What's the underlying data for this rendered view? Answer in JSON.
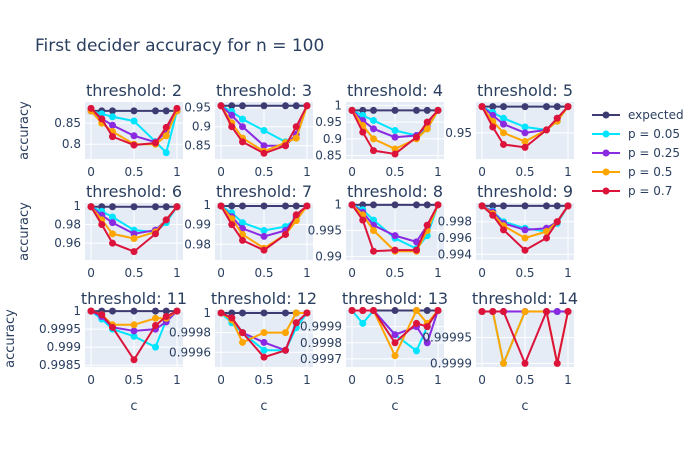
{
  "chart_data": {
    "type": "line",
    "title": "First decider accuracy for n = 100",
    "xlabel": "c",
    "ylabel": "accuracy",
    "x": [
      0,
      0.125,
      0.25,
      0.5,
      0.75,
      0.875,
      1
    ],
    "legend": {
      "placement": "right",
      "entries": [
        {
          "name": "expected",
          "color": "#3d3b72"
        },
        {
          "name": "p = 0.05",
          "color": "#00e5ff"
        },
        {
          "name": "p = 0.25",
          "color": "#8a2be2"
        },
        {
          "name": "p = 0.5",
          "color": "#ffa500"
        },
        {
          "name": "p = 0.7",
          "color": "#dc143c"
        }
      ]
    },
    "panels": [
      {
        "title": "threshold: 2",
        "ylim": [
          0.765,
          0.9
        ],
        "yticks": [
          0.8,
          0.85
        ],
        "ytick_labels": [
          "0.8",
          "0.85"
        ],
        "xticks": [
          0,
          0.5,
          1
        ],
        "xtick_labels": [
          "0",
          "0.5",
          "1"
        ],
        "series": [
          [
            0.879,
            0.879,
            0.879,
            0.879,
            0.879,
            0.879,
            0.879
          ],
          [
            0.879,
            0.872,
            0.865,
            0.855,
            0.806,
            0.78,
            0.879
          ],
          [
            0.879,
            0.86,
            0.845,
            0.82,
            0.805,
            0.83,
            0.879
          ],
          [
            0.879,
            0.85,
            0.83,
            0.8,
            0.8,
            0.82,
            0.879
          ],
          [
            0.885,
            0.86,
            0.818,
            0.798,
            0.803,
            0.84,
            0.885
          ]
        ]
      },
      {
        "title": "threshold: 3",
        "ylim": [
          0.815,
          0.965
        ],
        "yticks": [
          0.85,
          0.9,
          0.95
        ],
        "ytick_labels": [
          "0.85",
          "0.9",
          "0.95"
        ],
        "xticks": [
          0,
          0.5,
          1
        ],
        "xtick_labels": [
          "0",
          "0.5",
          "1"
        ],
        "series": [
          [
            0.955,
            0.955,
            0.955,
            0.955,
            0.955,
            0.955,
            0.955
          ],
          [
            0.955,
            0.94,
            0.92,
            0.89,
            0.86,
            0.87,
            0.955
          ],
          [
            0.955,
            0.93,
            0.9,
            0.85,
            0.85,
            0.88,
            0.955
          ],
          [
            0.955,
            0.91,
            0.87,
            0.835,
            0.858,
            0.87,
            0.955
          ],
          [
            0.955,
            0.9,
            0.86,
            0.83,
            0.85,
            0.9,
            0.955
          ]
        ]
      },
      {
        "title": "threshold: 4",
        "ylim": [
          0.84,
          1.01
        ],
        "yticks": [
          0.85,
          0.9,
          0.95,
          1
        ],
        "ytick_labels": [
          "0.85",
          "0.9",
          "0.95",
          "1"
        ],
        "xticks": [
          0,
          0.5,
          1
        ],
        "xtick_labels": [
          "0",
          "0.5",
          "1"
        ],
        "series": [
          [
            0.985,
            0.985,
            0.985,
            0.985,
            0.985,
            0.985,
            0.985
          ],
          [
            0.985,
            0.97,
            0.955,
            0.925,
            0.91,
            0.93,
            0.985
          ],
          [
            0.985,
            0.955,
            0.93,
            0.905,
            0.91,
            0.94,
            0.985
          ],
          [
            0.985,
            0.94,
            0.9,
            0.87,
            0.9,
            0.93,
            0.985
          ],
          [
            0.985,
            0.92,
            0.865,
            0.855,
            0.905,
            0.95,
            0.985
          ]
        ]
      },
      {
        "title": "threshold: 5",
        "ylim": [
          0.905,
          1.003
        ],
        "yticks": [
          0.95
        ],
        "ytick_labels": [
          "0.95"
        ],
        "xticks": [
          0,
          0.5,
          1
        ],
        "xtick_labels": [
          "0",
          "0.5",
          "1"
        ],
        "series": [
          [
            0.995,
            0.995,
            0.995,
            0.995,
            0.995,
            0.995,
            0.995
          ],
          [
            0.995,
            0.985,
            0.975,
            0.96,
            0.955,
            0.97,
            0.995
          ],
          [
            0.995,
            0.98,
            0.965,
            0.95,
            0.955,
            0.975,
            0.995
          ],
          [
            0.995,
            0.97,
            0.95,
            0.935,
            0.955,
            0.97,
            0.995
          ],
          [
            0.995,
            0.96,
            0.93,
            0.925,
            0.955,
            0.975,
            0.995
          ]
        ]
      },
      {
        "title": "threshold: 6",
        "ylim": [
          0.942,
          1.003
        ],
        "yticks": [
          0.96,
          0.98,
          1
        ],
        "ytick_labels": [
          "0.96",
          "0.98",
          "1"
        ],
        "xticks": [
          0,
          0.5,
          1
        ],
        "xtick_labels": [
          "0",
          "0.5",
          "1"
        ],
        "series": [
          [
            0.999,
            0.999,
            0.999,
            0.999,
            0.999,
            0.999,
            0.999
          ],
          [
            0.999,
            0.994,
            0.988,
            0.974,
            0.972,
            0.982,
            0.999
          ],
          [
            0.999,
            0.99,
            0.982,
            0.97,
            0.974,
            0.985,
            0.999
          ],
          [
            0.999,
            0.985,
            0.97,
            0.965,
            0.972,
            0.985,
            0.999
          ],
          [
            0.999,
            0.98,
            0.96,
            0.951,
            0.97,
            0.985,
            0.999
          ]
        ]
      },
      {
        "title": "threshold: 7",
        "ylim": [
          0.972,
          1.001
        ],
        "yticks": [
          0.98,
          0.99,
          1
        ],
        "ytick_labels": [
          "0.98",
          "0.99",
          "1"
        ],
        "xticks": [
          0,
          0.5,
          1
        ],
        "xtick_labels": [
          "0",
          "0.5",
          "1"
        ],
        "series": [
          [
            0.9995,
            0.9995,
            0.9995,
            0.9995,
            0.9995,
            0.9995,
            0.9995
          ],
          [
            0.9995,
            0.996,
            0.991,
            0.987,
            0.989,
            0.993,
            0.9995
          ],
          [
            0.9995,
            0.994,
            0.988,
            0.984,
            0.987,
            0.994,
            0.9995
          ],
          [
            0.9995,
            0.993,
            0.985,
            0.978,
            0.985,
            0.992,
            0.9995
          ],
          [
            0.9995,
            0.99,
            0.982,
            0.977,
            0.985,
            0.995,
            0.9995
          ]
        ]
      },
      {
        "title": "threshold: 8",
        "ylim": [
          0.9893,
          1.0003
        ],
        "yticks": [
          0.99,
          0.995,
          1
        ],
        "ytick_labels": [
          "0.99",
          "0.995",
          "1"
        ],
        "xticks": [
          0,
          0.5,
          1
        ],
        "xtick_labels": [
          "0",
          "0.5",
          "1"
        ],
        "series": [
          [
            0.99995,
            0.99995,
            0.99995,
            0.99995,
            0.99995,
            0.99995,
            0.99995
          ],
          [
            0.99995,
            0.999,
            0.997,
            0.9935,
            0.9915,
            0.994,
            0.99995
          ],
          [
            0.99995,
            0.9985,
            0.996,
            0.994,
            0.9928,
            0.996,
            0.99995
          ],
          [
            0.99995,
            0.998,
            0.995,
            0.991,
            0.991,
            0.995,
            0.99995
          ],
          [
            0.99995,
            0.997,
            0.991,
            0.9912,
            0.9912,
            0.996,
            0.99995
          ]
        ]
      },
      {
        "title": "threshold: 9",
        "ylim": [
          0.9933,
          1.0003
        ],
        "yticks": [
          0.994,
          0.996,
          0.998
        ],
        "ytick_labels": [
          "0.994",
          "0.996",
          "0.998"
        ],
        "xticks": [
          0,
          0.5,
          1
        ],
        "xtick_labels": [
          "0",
          "0.5",
          "1"
        ],
        "series": [
          [
            0.99995,
            0.99995,
            0.99995,
            0.99995,
            0.99995,
            0.99995,
            0.99995
          ],
          [
            0.99995,
            0.9993,
            0.998,
            0.9972,
            0.9968,
            0.9978,
            0.99995
          ],
          [
            0.99995,
            0.9992,
            0.9978,
            0.997,
            0.9972,
            0.998,
            0.99995
          ],
          [
            0.99995,
            0.999,
            0.9975,
            0.996,
            0.9968,
            0.998,
            0.99995
          ],
          [
            0.99995,
            0.9988,
            0.997,
            0.9945,
            0.996,
            0.998,
            0.99995
          ]
        ]
      },
      {
        "title": "threshold: 11",
        "ylim": [
          0.99845,
          1.00003
        ],
        "yticks": [
          0.9985,
          0.999,
          0.9995,
          1
        ],
        "ytick_labels": [
          "0.9985",
          "0.999",
          "0.9995",
          "1"
        ],
        "xticks": [
          0,
          0.5,
          1
        ],
        "xtick_labels": [
          "0",
          "0.5",
          "1"
        ],
        "series": [
          [
            1.0,
            1.0,
            1.0,
            1.0,
            1.0,
            1.0,
            1.0
          ],
          [
            1.0,
            0.99978,
            0.9995,
            0.9993,
            0.999,
            0.99975,
            1.0
          ],
          [
            1.0,
            0.99985,
            0.99955,
            0.99945,
            0.9995,
            0.9997,
            1.0
          ],
          [
            1.0,
            0.9999,
            0.99962,
            0.99962,
            0.9998,
            0.9998,
            1.0
          ],
          [
            1.0,
            0.9999,
            0.99955,
            0.99865,
            0.9996,
            0.99985,
            1.0
          ]
        ]
      },
      {
        "title": "threshold: 12",
        "ylim": [
          0.99945,
          1.00003
        ],
        "yticks": [
          0.9996,
          0.9998,
          1
        ],
        "ytick_labels": [
          "0.9996",
          "0.9998",
          "1"
        ],
        "xticks": [
          0,
          0.5,
          1
        ],
        "xtick_labels": [
          "0",
          "0.5",
          "1"
        ],
        "series": [
          [
            1.0,
            1.0,
            1.0,
            1.0,
            1.0,
            1.0,
            1.0
          ],
          [
            1.0,
            0.9999,
            0.9998,
            0.99962,
            0.99962,
            0.99985,
            1.0
          ],
          [
            1.0,
            0.99995,
            0.9998,
            0.9997,
            0.99962,
            0.9999,
            1.0
          ],
          [
            1.0,
            0.99993,
            0.9997,
            0.9998,
            0.9998,
            1.0,
            1.0
          ],
          [
            1.0,
            0.99995,
            0.9998,
            0.99955,
            0.99962,
            0.9999,
            1.0
          ]
        ]
      },
      {
        "title": "threshold: 13",
        "ylim": [
          0.99965,
          1.000003
        ],
        "yticks": [
          0.9997,
          0.9998,
          0.9999
        ],
        "ytick_labels": [
          "0.9997",
          "0.9998",
          "0.9999"
        ],
        "xticks": [
          0,
          0.5,
          1
        ],
        "xtick_labels": [
          "0",
          "0.5",
          "1"
        ],
        "series": [
          [
            1.0,
            1.0,
            1.0,
            1.0,
            1.0,
            1.0,
            1.0
          ],
          [
            1.0,
            0.99992,
            1.0,
            0.99985,
            0.99975,
            0.9999,
            1.0
          ],
          [
            1.0,
            1.0,
            1.0,
            0.99985,
            0.9999,
            0.9998,
            1.0
          ],
          [
            1.0,
            1.0,
            1.0,
            0.99972,
            1.0,
            0.99992,
            1.0
          ],
          [
            1.0,
            1.0,
            1.0,
            0.9998,
            0.99992,
            0.9999,
            1.0
          ]
        ]
      },
      {
        "title": "threshold: 14",
        "ylim": [
          0.999893,
          1.000003
        ],
        "yticks": [
          0.9999,
          0.99995
        ],
        "ytick_labels": [
          "0.9999",
          "0.99995"
        ],
        "xticks": [
          0,
          0.5,
          1
        ],
        "xtick_labels": [
          "0",
          "0.5",
          "1"
        ],
        "series": [
          [
            1.0,
            1.0,
            1.0,
            1.0,
            1.0,
            1.0,
            1.0
          ],
          [
            1.0,
            1.0,
            0.9999,
            1.0,
            1.0,
            1.0,
            1.0
          ],
          [
            1.0,
            1.0,
            1.0,
            1.0,
            1.0,
            1.0,
            1.0
          ],
          [
            1.0,
            1.0,
            0.9999,
            1.0,
            1.0,
            0.9999,
            1.0
          ],
          [
            1.0,
            1.0,
            1.0,
            0.9999,
            1.0,
            0.9999,
            1.0
          ]
        ]
      }
    ]
  }
}
